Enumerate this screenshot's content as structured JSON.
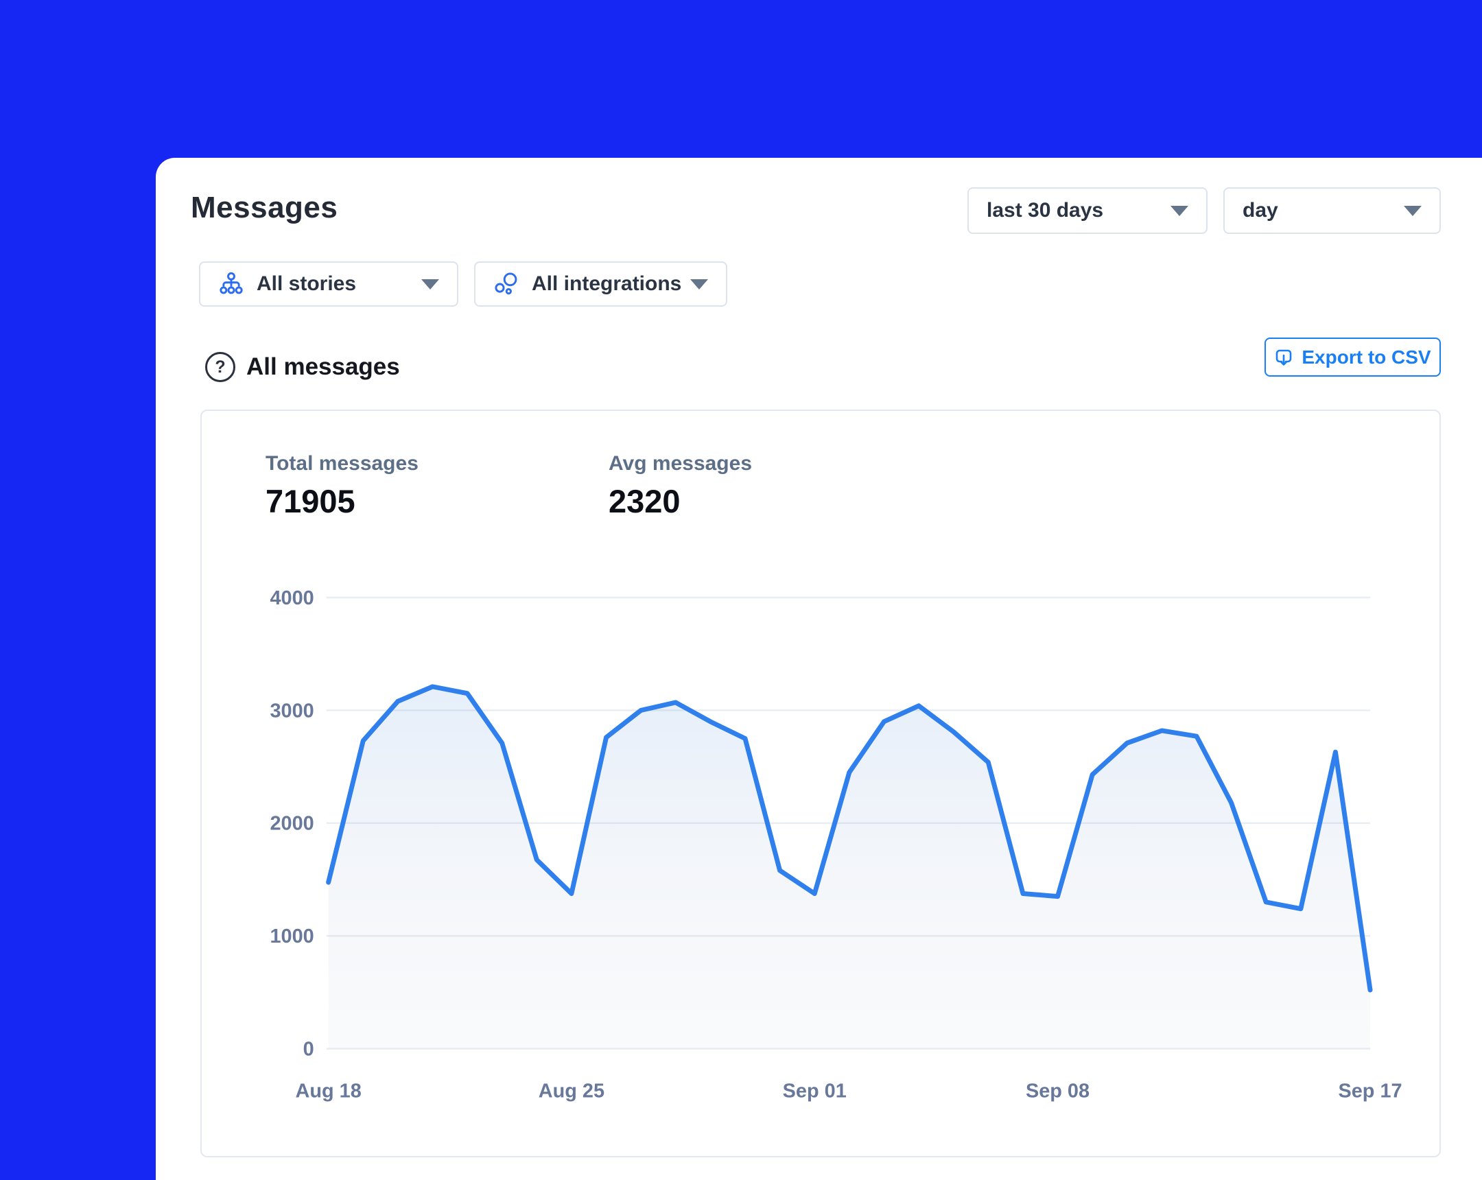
{
  "header": {
    "title": "Messages"
  },
  "controls": {
    "date_range": {
      "value": "last 30 days"
    },
    "granularity": {
      "value": "day"
    },
    "stories_filter": {
      "value": "All stories"
    },
    "integrations_filter": {
      "value": "All integrations"
    }
  },
  "section": {
    "title": "All messages",
    "export_label": "Export to CSV"
  },
  "icons": {
    "help_glyph": "?"
  },
  "stats": [
    {
      "label": "Total messages",
      "value": "71905"
    },
    {
      "label": "Avg messages",
      "value": "2320"
    }
  ],
  "colors": {
    "background": "#1627f3",
    "accent": "#1a7ff2",
    "line": "#2f80ed",
    "axis_label": "#68789b",
    "grid": "#e9edf4"
  },
  "chart_data": {
    "type": "area",
    "title": "All messages",
    "x": [
      "Aug 18",
      "Aug 19",
      "Aug 20",
      "Aug 21",
      "Aug 22",
      "Aug 23",
      "Aug 24",
      "Aug 25",
      "Aug 26",
      "Aug 27",
      "Aug 28",
      "Aug 29",
      "Aug 30",
      "Aug 31",
      "Sep 01",
      "Sep 02",
      "Sep 03",
      "Sep 04",
      "Sep 05",
      "Sep 06",
      "Sep 07",
      "Sep 08",
      "Sep 09",
      "Sep 10",
      "Sep 11",
      "Sep 12",
      "Sep 13",
      "Sep 14",
      "Sep 15",
      "Sep 16",
      "Sep 17"
    ],
    "values": [
      1475,
      2730,
      3080,
      3210,
      3150,
      2710,
      1675,
      1375,
      2760,
      3000,
      3070,
      2900,
      2750,
      1580,
      1375,
      2450,
      2900,
      3040,
      2810,
      2540,
      1375,
      1350,
      2430,
      2710,
      2820,
      2770,
      2180,
      1300,
      1240,
      2630,
      520
    ],
    "total": 71905,
    "avg": 2320,
    "xlabel": "",
    "ylabel": "",
    "ylim": [
      0,
      4000
    ],
    "yticks": [
      0,
      1000,
      2000,
      3000,
      4000
    ],
    "x_tick_labels": [
      "Aug 18",
      "Aug 25",
      "Sep 01",
      "Sep 08",
      "Sep 17"
    ],
    "x_tick_indices": [
      0,
      7,
      14,
      21,
      30
    ],
    "grid": "horizontal",
    "legend": "none"
  }
}
